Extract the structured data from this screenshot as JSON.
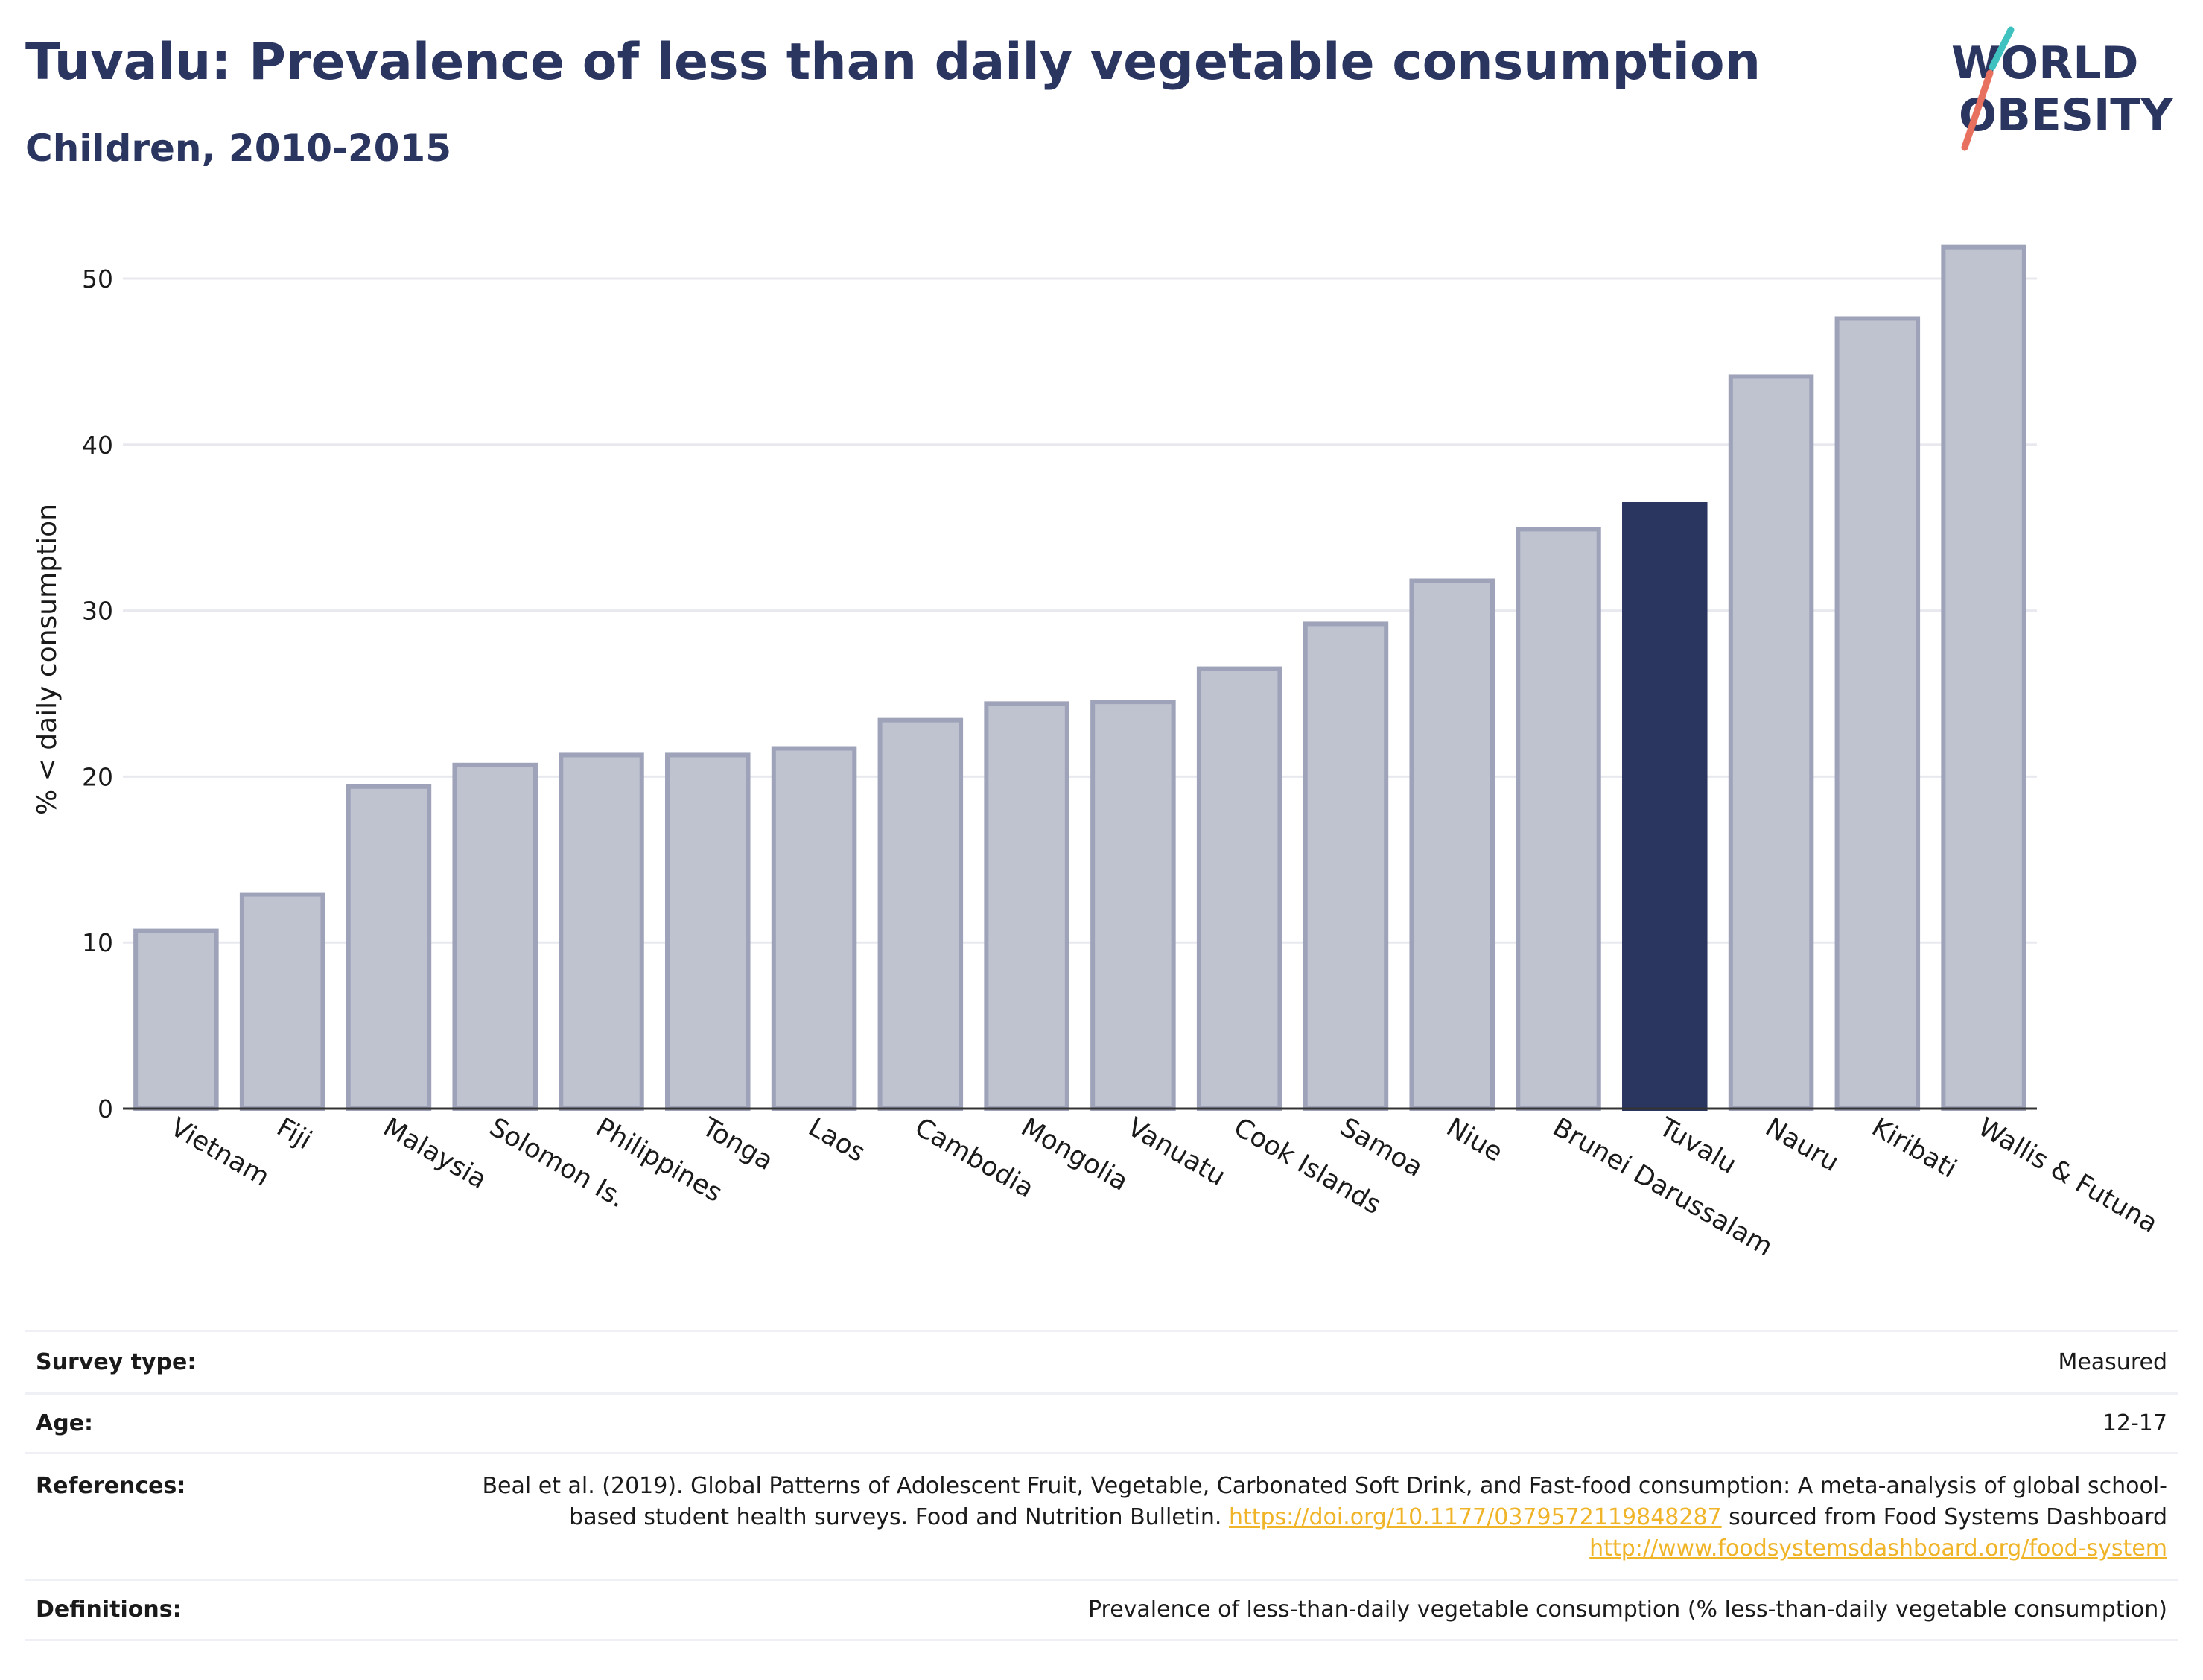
{
  "header": {
    "title": "Tuvalu: Prevalence of less than daily vegetable consumption",
    "subtitle": "Children, 2010-2015"
  },
  "logo": {
    "line1": "WORLD",
    "line2": "OBESITY",
    "colors": {
      "text": "#2a3560",
      "slash_red": "#e8705f",
      "slash_teal": "#3fc1c0"
    }
  },
  "colors": {
    "bar": "#bfc3d0",
    "bar_stroke": "#9ea3b9",
    "highlight": "#2a3560",
    "grid": "#e8e9ef"
  },
  "chart_data": {
    "type": "bar",
    "title": "Tuvalu: Prevalence of less than daily vegetable consumption",
    "subtitle": "Children, 2010-2015",
    "xlabel": "",
    "ylabel": "% < daily consumption",
    "ylim": [
      0,
      54
    ],
    "yticks": [
      0,
      10,
      20,
      30,
      40,
      50
    ],
    "grid": true,
    "highlight": "Tuvalu",
    "categories": [
      "Vietnam",
      "Fiji",
      "Malaysia",
      "Solomon Is.",
      "Philippines",
      "Tonga",
      "Laos",
      "Cambodia",
      "Mongolia",
      "Vanuatu",
      "Cook Islands",
      "Samoa",
      "Niue",
      "Brunei Darussalam",
      "Tuvalu",
      "Nauru",
      "Kiribati",
      "Wallis & Futuna"
    ],
    "values": [
      10.7,
      12.9,
      19.4,
      20.7,
      21.3,
      21.3,
      21.7,
      23.4,
      24.4,
      24.5,
      26.5,
      29.2,
      31.8,
      34.9,
      36.4,
      44.1,
      47.6,
      51.9
    ]
  },
  "info": {
    "survey_type_label": "Survey type:",
    "survey_type_value": "Measured",
    "age_label": "Age:",
    "age_value": "12-17",
    "references_label": "References:",
    "references_text1": "Beal et al. (2019). Global Patterns of Adolescent Fruit, Vegetable, Carbonated Soft Drink, and Fast-food consumption: A meta-analysis of global school-based student health surveys. Food and Nutrition Bulletin. ",
    "references_link1": "https://doi.org/10.1177/0379572119848287",
    "references_text2": " sourced from Food Systems Dashboard ",
    "references_link2": "http://www.foodsystemsdashboard.org/food-system",
    "definitions_label": "Definitions:",
    "definitions_value": "Prevalence of less-than-daily vegetable consumption (% less-than-daily vegetable consumption)"
  }
}
